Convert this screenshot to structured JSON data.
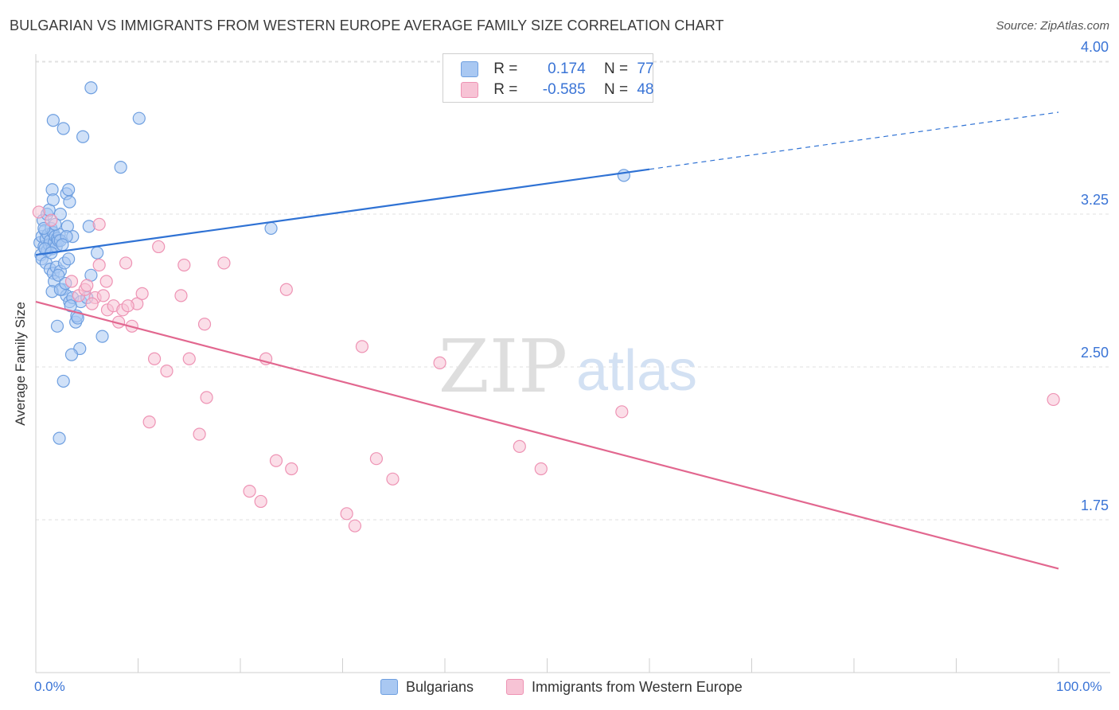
{
  "title": "BULGARIAN VS IMMIGRANTS FROM WESTERN EUROPE AVERAGE FAMILY SIZE CORRELATION CHART",
  "source": "Source: ZipAtlas.com",
  "watermark": {
    "zip": "ZIP",
    "atlas": "atlas"
  },
  "legend": {
    "series1": {
      "r_label": "R =",
      "r_value": "0.174",
      "n_label": "N =",
      "n_value": "77"
    },
    "series2": {
      "r_label": "R =",
      "r_value": "-0.585",
      "n_label": "N =",
      "n_value": "48"
    }
  },
  "bottom_legend": {
    "series1": "Bulgarians",
    "series2": "Immigrants from Western Europe"
  },
  "colors": {
    "blue_fill": "#a9c8f2",
    "blue_stroke": "#6e9fe0",
    "blue_line": "#2f72d4",
    "pink_fill": "#f7c3d5",
    "pink_stroke": "#ee93b4",
    "pink_line": "#e2678f",
    "tick_text": "#3a74d6",
    "grid": "#e1e1e1"
  },
  "chart_data": {
    "type": "scatter",
    "title": "BULGARIAN VS IMMIGRANTS FROM WESTERN EUROPE AVERAGE FAMILY SIZE CORRELATION CHART",
    "xlabel": "",
    "ylabel": "Average Family Size",
    "xlim": [
      0,
      100
    ],
    "ylim": [
      1.0,
      4.1
    ],
    "x_tick_labels": [
      "0.0%",
      "100.0%"
    ],
    "y_ticks": [
      1.75,
      2.5,
      3.25,
      4.0
    ],
    "y_tick_labels": [
      "1.75",
      "2.50",
      "3.25",
      "4.00"
    ],
    "grid": true,
    "series": [
      {
        "name": "Bulgarians",
        "R": 0.174,
        "N": 77,
        "trend": {
          "x0": 0,
          "y0": 3.05,
          "x1": 60,
          "y1": 3.47,
          "dashed_to_x": 100,
          "dashed_to_y": 3.75
        },
        "points": [
          [
            0.4,
            3.11
          ],
          [
            0.5,
            3.05
          ],
          [
            0.6,
            3.14
          ],
          [
            0.7,
            3.22
          ],
          [
            0.8,
            3.09
          ],
          [
            0.9,
            3.17
          ],
          [
            1.0,
            3.13
          ],
          [
            1.1,
            3.07
          ],
          [
            1.2,
            3.15
          ],
          [
            1.3,
            3.1
          ],
          [
            1.4,
            3.12
          ],
          [
            1.5,
            3.18
          ],
          [
            1.6,
            3.08
          ],
          [
            1.7,
            3.16
          ],
          [
            1.8,
            3.11
          ],
          [
            1.9,
            3.14
          ],
          [
            2.0,
            3.09
          ],
          [
            2.1,
            3.13
          ],
          [
            2.2,
            3.12
          ],
          [
            2.3,
            3.15
          ],
          [
            0.6,
            3.03
          ],
          [
            1.0,
            3.01
          ],
          [
            1.4,
            2.98
          ],
          [
            1.7,
            2.96
          ],
          [
            2.0,
            2.99
          ],
          [
            2.4,
            2.97
          ],
          [
            2.8,
            3.01
          ],
          [
            3.2,
            3.03
          ],
          [
            3.6,
            3.14
          ],
          [
            1.1,
            3.25
          ],
          [
            1.3,
            3.27
          ],
          [
            1.6,
            3.37
          ],
          [
            1.7,
            3.32
          ],
          [
            2.4,
            3.25
          ],
          [
            3.0,
            3.35
          ],
          [
            3.2,
            3.37
          ],
          [
            3.3,
            3.31
          ],
          [
            3.1,
            3.19
          ],
          [
            2.4,
            3.12
          ],
          [
            3.0,
            3.14
          ],
          [
            1.8,
            2.92
          ],
          [
            2.2,
            2.95
          ],
          [
            2.6,
            2.88
          ],
          [
            3.0,
            2.85
          ],
          [
            3.3,
            2.82
          ],
          [
            3.6,
            2.84
          ],
          [
            1.6,
            2.87
          ],
          [
            2.1,
            2.7
          ],
          [
            2.4,
            2.88
          ],
          [
            3.9,
            2.72
          ],
          [
            4.0,
            2.75
          ],
          [
            4.3,
            2.59
          ],
          [
            3.5,
            2.56
          ],
          [
            2.7,
            2.43
          ],
          [
            2.3,
            2.15
          ],
          [
            4.4,
            2.82
          ],
          [
            5.0,
            2.84
          ],
          [
            5.4,
            2.95
          ],
          [
            6.0,
            3.06
          ],
          [
            5.2,
            3.19
          ],
          [
            4.6,
            3.63
          ],
          [
            5.4,
            3.87
          ],
          [
            1.7,
            3.71
          ],
          [
            2.7,
            3.67
          ],
          [
            8.3,
            3.48
          ],
          [
            10.1,
            3.72
          ],
          [
            23.0,
            3.18
          ],
          [
            57.5,
            3.44
          ],
          [
            0.9,
            3.08
          ],
          [
            1.5,
            3.06
          ],
          [
            2.6,
            3.1
          ],
          [
            0.8,
            3.18
          ],
          [
            1.9,
            3.2
          ],
          [
            2.9,
            2.91
          ],
          [
            3.4,
            2.8
          ],
          [
            4.1,
            2.74
          ],
          [
            6.5,
            2.65
          ]
        ]
      },
      {
        "name": "Immigrants from Western Europe",
        "R": -0.585,
        "N": 48,
        "trend": {
          "x0": 0,
          "y0": 2.82,
          "x1": 100,
          "y1": 1.51
        },
        "points": [
          [
            0.3,
            3.26
          ],
          [
            1.5,
            3.22
          ],
          [
            4.2,
            2.85
          ],
          [
            4.8,
            2.88
          ],
          [
            5.8,
            2.84
          ],
          [
            5.5,
            2.81
          ],
          [
            6.2,
            3.0
          ],
          [
            6.6,
            2.85
          ],
          [
            7.0,
            2.78
          ],
          [
            7.6,
            2.8
          ],
          [
            8.1,
            2.72
          ],
          [
            8.5,
            2.78
          ],
          [
            8.8,
            3.01
          ],
          [
            9.4,
            2.7
          ],
          [
            9.9,
            2.81
          ],
          [
            10.4,
            2.86
          ],
          [
            11.1,
            2.23
          ],
          [
            11.6,
            2.54
          ],
          [
            12.0,
            3.09
          ],
          [
            12.8,
            2.48
          ],
          [
            14.5,
            3.0
          ],
          [
            14.2,
            2.85
          ],
          [
            15.0,
            2.54
          ],
          [
            16.0,
            2.17
          ],
          [
            16.5,
            2.71
          ],
          [
            16.7,
            2.35
          ],
          [
            18.4,
            3.01
          ],
          [
            20.9,
            1.89
          ],
          [
            22.0,
            1.84
          ],
          [
            22.5,
            2.54
          ],
          [
            23.5,
            2.04
          ],
          [
            24.5,
            2.88
          ],
          [
            25.0,
            2.0
          ],
          [
            30.4,
            1.78
          ],
          [
            31.2,
            1.72
          ],
          [
            31.9,
            2.6
          ],
          [
            33.3,
            2.05
          ],
          [
            34.9,
            1.95
          ],
          [
            39.5,
            2.52
          ],
          [
            47.3,
            2.11
          ],
          [
            49.4,
            2.0
          ],
          [
            57.3,
            2.28
          ],
          [
            6.2,
            3.2
          ],
          [
            3.5,
            2.92
          ],
          [
            5.0,
            2.9
          ],
          [
            6.9,
            2.92
          ],
          [
            9.0,
            2.8
          ],
          [
            99.5,
            2.34
          ]
        ]
      }
    ]
  }
}
